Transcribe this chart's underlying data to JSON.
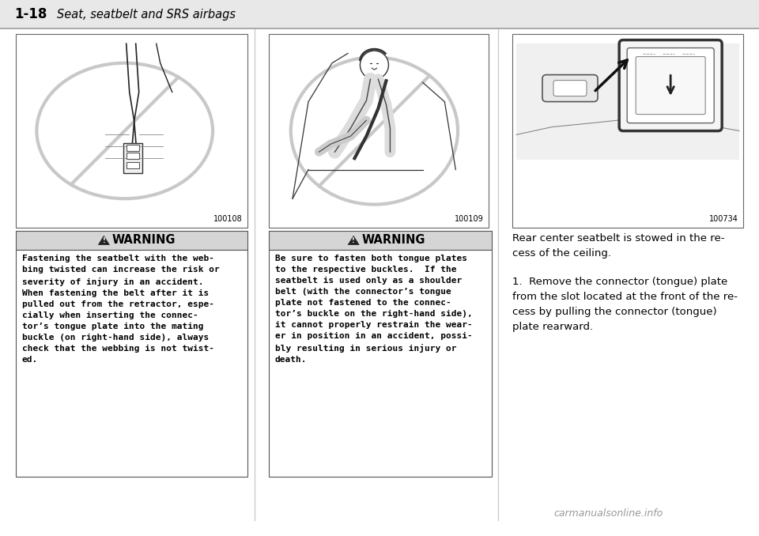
{
  "bg_color": "#ffffff",
  "header_bg": "#e8e8e8",
  "title_bold": "1-18",
  "title_italic": "Seat, seatbelt and SRS airbags",
  "image_label_1": "100108",
  "image_label_2": "100109",
  "image_label_3": "100734",
  "warning_title": "WARNING",
  "warn_text_1": "Fastening the seatbelt with the web-\nbing twisted can increase the risk or\nseverity of injury in an accident.\nWhen fastening the belt after it is\npulled out from the retractor, espe-\ncially when inserting the connec-\ntor’s tongue plate into the mating\nbuckle (on right-hand side), always\ncheck that the webbing is not twist-\ned.",
  "warn_text_2": "Be sure to fasten both tongue plates\nto the respective buckles.  If the\nseatbelt is used only as a shoulder\nbelt (with the connector’s tongue\nplate not fastened to the connec-\ntor’s buckle on the right-hand side),\nit cannot properly restrain the wear-\ner in position in an accident, possi-\nbly resulting in serious injury or\ndeath.",
  "col3_text_1": "Rear center seatbelt is stowed in the re-\ncess of the ceiling.",
  "col3_text_2": "1.  Remove the connector (tongue) plate\nfrom the slot located at the front of the re-\ncess by pulling the connector (tongue)\nplate rearward.",
  "footer_text": "carmanualsonline.info"
}
